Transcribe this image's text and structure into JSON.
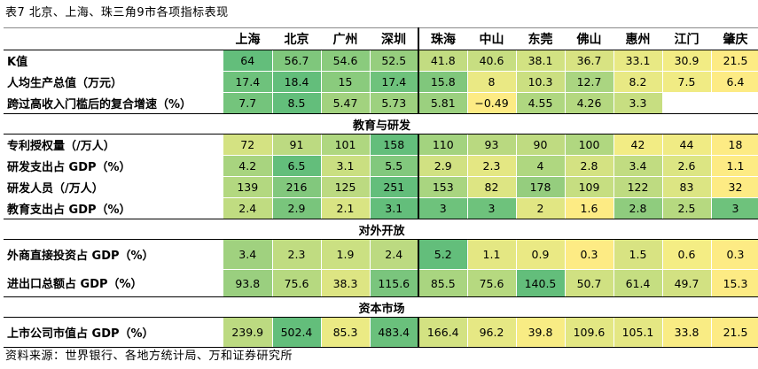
{
  "caption": "表7 北京、上海、珠三角9市各项指标表现",
  "source": "资料来源：世界银行、各地方统计局、万和证券研究所",
  "cities": [
    "上海",
    "北京",
    "广州",
    "深圳",
    "珠海",
    "中山",
    "东莞",
    "佛山",
    "惠州",
    "江门",
    "肇庆"
  ],
  "sections": [
    {
      "title": "",
      "rows": [
        {
          "label": "K值",
          "values": [
            "64",
            "56.7",
            "54.6",
            "52.5",
            "41.8",
            "40.6",
            "38.1",
            "36.7",
            "33.1",
            "30.9",
            "21.5"
          ],
          "colors": [
            "#63be7b",
            "#7fc77c",
            "#8acb7d",
            "#96ce7e",
            "#c2dc81",
            "#c7de81",
            "#d2e282",
            "#d8e382",
            "#e8e984",
            "#f2ec84",
            "#fdeb84"
          ]
        },
        {
          "label": "人均生产总值（万元）",
          "values": [
            "17.4",
            "18.4",
            "15",
            "17.4",
            "15.8",
            "8",
            "10.3",
            "12.7",
            "8.2",
            "7.5",
            "6.4"
          ],
          "colors": [
            "#6ec27c",
            "#63be7b",
            "#8acb7d",
            "#6ec27c",
            "#80c77c",
            "#eae984",
            "#cbdf81",
            "#aad581",
            "#e8e984",
            "#f0eb84",
            "#fdeb84"
          ]
        },
        {
          "label": "跨过高收入门槛后的复合增速（%）",
          "values": [
            "7.7",
            "8.5",
            "5.47",
            "5.73",
            "5.81",
            "−0.49",
            "4.55",
            "4.26",
            "3.3",
            "",
            ""
          ],
          "colors": [
            "#74c47c",
            "#63be7b",
            "#a2d27f",
            "#9dd17f",
            "#9bd07f",
            "#fdeb84",
            "#afd780",
            "#b4d880",
            "#c7de81",
            "#ffffff",
            "#ffffff"
          ]
        }
      ]
    },
    {
      "title": "教育与研发",
      "rows": [
        {
          "label": "专利授权量（/万人）",
          "values": [
            "72",
            "91",
            "101",
            "158",
            "110",
            "93",
            "90",
            "100",
            "42",
            "44",
            "18"
          ],
          "colors": [
            "#d4e282",
            "#bcda81",
            "#afd780",
            "#63be7b",
            "#a3d37f",
            "#b9d980",
            "#bfdb81",
            "#b0d780",
            "#f2ec84",
            "#f0eb84",
            "#fdeb84"
          ]
        },
        {
          "label": "研发支出占 GDP（%）",
          "values": [
            "4.2",
            "6.5",
            "3.1",
            "5.5",
            "2.9",
            "2.3",
            "4",
            "2.8",
            "3.4",
            "2.6",
            "1.1"
          ],
          "colors": [
            "#a8d47f",
            "#63be7b",
            "#cadf81",
            "#82c87d",
            "#d1e182",
            "#e4e783",
            "#afd780",
            "#d4e282",
            "#c1dc81",
            "#daе483",
            "#fdeb84"
          ]
        },
        {
          "label": "研发人员（/万人）",
          "values": [
            "139",
            "216",
            "125",
            "251",
            "153",
            "82",
            "178",
            "109",
            "122",
            "83",
            "32"
          ],
          "colors": [
            "#b3d880",
            "#82c87d",
            "#bcda81",
            "#63be7b",
            "#a9d580",
            "#dde583",
            "#95cd7e",
            "#c6de81",
            "#bedb81",
            "#dce583",
            "#fdeb84"
          ]
        },
        {
          "label": "教育支出占 GDP（%）",
          "values": [
            "2.4",
            "2.9",
            "2.1",
            "3.1",
            "3",
            "3",
            "2",
            "1.6",
            "2.8",
            "2.5",
            "3"
          ],
          "colors": [
            "#c0dc81",
            "#79c57c",
            "#d9e483",
            "#63be7b",
            "#6ec27c",
            "#6ec27c",
            "#e1e683",
            "#fdeb84",
            "#8fcc7e",
            "#b6d980",
            "#6ec27c"
          ]
        }
      ]
    },
    {
      "title": "对外开放",
      "rows": [
        {
          "label": "外商直接投资占 GDP（%）",
          "values": [
            "3.4",
            "2.3",
            "1.9",
            "2.4",
            "5.2",
            "1.1",
            "0.9",
            "0.3",
            "1.5",
            "0.6",
            "0.3"
          ],
          "colors": [
            "#a0d17f",
            "#c0dc81",
            "#cbe082",
            "#bcda81",
            "#63be7b",
            "#e4e783",
            "#eae984",
            "#fdeb84",
            "#d8e382",
            "#f4ed84",
            "#fdeb84"
          ],
          "tall": "tall"
        },
        {
          "label": "进出口总额占 GDP（%）",
          "values": [
            "93.8",
            "75.6",
            "38.3",
            "115.6",
            "85.5",
            "75.6",
            "140.5",
            "50.7",
            "61.4",
            "49.7",
            "15.3"
          ],
          "colors": [
            "#9acf7f",
            "#b6d980",
            "#dde583",
            "#7ac57d",
            "#a9d580",
            "#b6d980",
            "#63be7b",
            "#d0e182",
            "#c5de81",
            "#d2e182",
            "#fdeb84"
          ],
          "tall": "tall2"
        }
      ]
    },
    {
      "title": "资本市场",
      "rows": [
        {
          "label": "上市公司市值占 GDP（%）",
          "values": [
            "239.9",
            "502.4",
            "85.3",
            "483.4",
            "166.4",
            "96.2",
            "39.8",
            "109.6",
            "105.1",
            "33.8",
            "21.5"
          ],
          "colors": [
            "#bcda81",
            "#63be7b",
            "#ebea84",
            "#6ac07c",
            "#d3e282",
            "#e6e884",
            "#f8ec84",
            "#e3e783",
            "#e4e783",
            "#f9ec84",
            "#fdeb84"
          ],
          "tall": "tall"
        }
      ]
    }
  ]
}
